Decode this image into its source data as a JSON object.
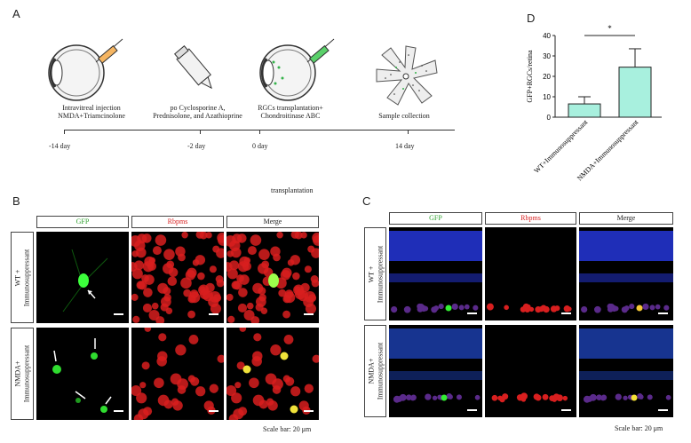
{
  "panels": {
    "a": "A",
    "b": "B",
    "c": "C",
    "d": "D"
  },
  "timeline": {
    "steps": [
      {
        "label": "Intravitreal injection\nNMDA+Triamcinolone",
        "day": "-14 day"
      },
      {
        "label": "po Cyclosporine A,\nPrednisolone, and Azathioprine",
        "day": "-2 day"
      },
      {
        "label": "RGCs transplantation+\nChondroitinase ABC",
        "day": "0 day"
      },
      {
        "label": "Sample collection",
        "day": "14 day"
      }
    ],
    "note": "transplantation"
  },
  "panel_b": {
    "columns": [
      "GFP",
      "Rbpms",
      "Merge"
    ],
    "rows": [
      "WT +\nImmunosuppressant",
      "NMDA+\nImmunosuppressant"
    ],
    "scale": "Scale bar: 20 μm"
  },
  "panel_c": {
    "columns": [
      "GFP",
      "Rbpms",
      "Merge"
    ],
    "rows": [
      "WT +\nImmunosuppressant",
      "NMDA+\nImmunosuppressant"
    ],
    "scale": "Scale bar: 20 μm"
  },
  "colors": {
    "gfp": "#1a9a1a",
    "rbpms": "#d81f1f",
    "bar_fill": "#a8f0de",
    "nuclei": "#2233cc"
  },
  "chart_data": {
    "type": "bar",
    "categories": [
      "WT+Immunosuppressant",
      "NMDA+Immunosuppressant"
    ],
    "values": [
      6.5,
      24.5
    ],
    "errors": [
      3.5,
      9
    ],
    "ylabel": "GFP+RGCs/retina",
    "ylim": [
      0,
      40
    ],
    "yticks": [
      0,
      10,
      20,
      30,
      40
    ],
    "significance": "*"
  }
}
